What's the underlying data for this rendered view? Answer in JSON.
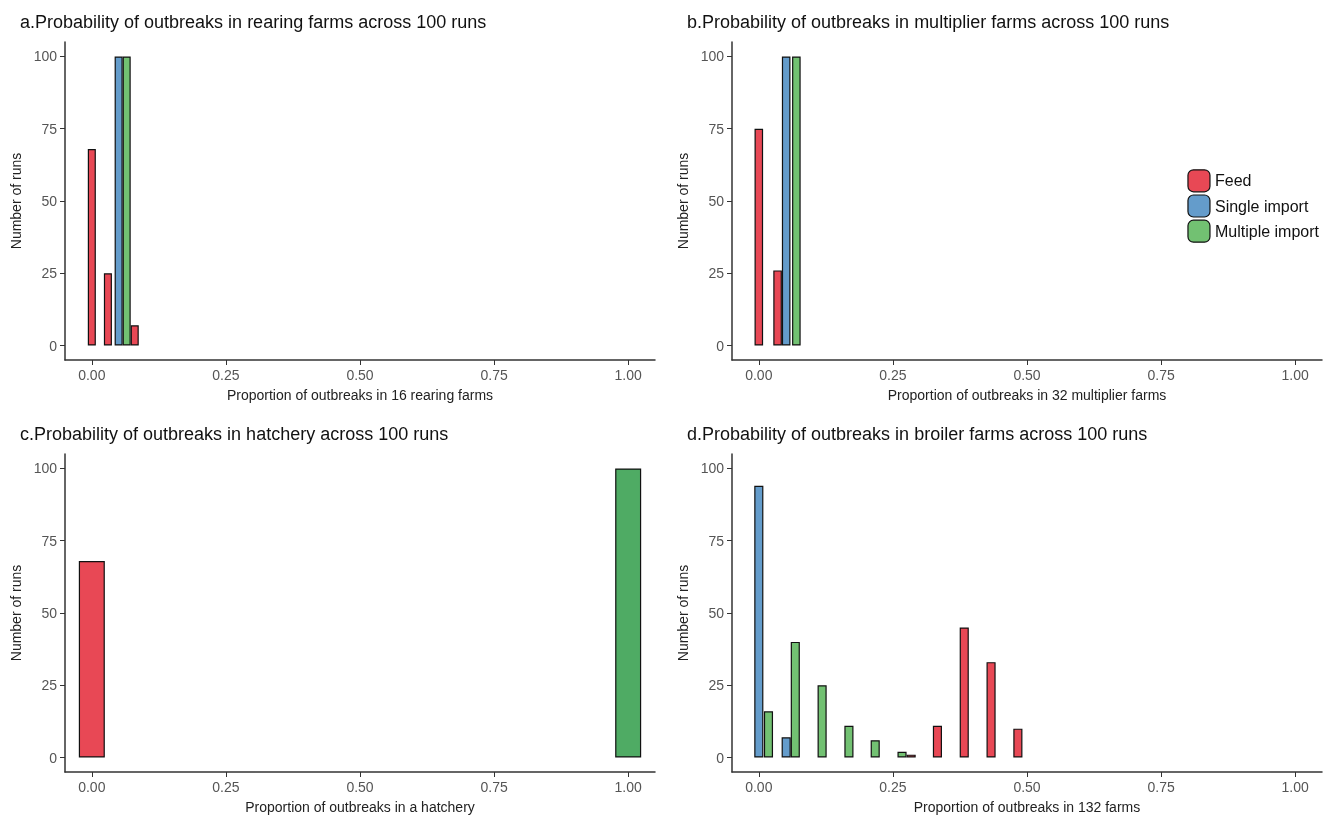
{
  "chart_data": [
    {
      "type": "bar",
      "title": "a.Probability of outbreaks in rearing farms across 100 runs",
      "xlabel": "Proportion of outbreaks in 16 rearing farms",
      "ylabel": "Number of runs",
      "xlim": [
        -0.05,
        1.05
      ],
      "ylim": [
        -5,
        105
      ],
      "xticks": [
        {
          "value": 0,
          "label": "0.00"
        },
        {
          "value": 0.25,
          "label": "0.25"
        },
        {
          "value": 0.5,
          "label": "0.50"
        },
        {
          "value": 0.75,
          "label": "0.75"
        },
        {
          "value": 1,
          "label": "1.00"
        }
      ],
      "yticks": [
        0,
        25,
        50,
        75,
        100
      ],
      "grid": false,
      "legend": false,
      "series": [
        {
          "color": "#e84855",
          "x": [
            0.0,
            0.03,
            0.08
          ],
          "values": [
            68,
            25,
            7
          ]
        },
        {
          "color": "#649ccb",
          "x": [
            0.05
          ],
          "values": [
            100
          ]
        },
        {
          "color": "#72c172",
          "x": [
            0.065
          ],
          "values": [
            100
          ]
        }
      ]
    },
    {
      "type": "bar",
      "title": "b.Probability of outbreaks in multiplier farms across 100 runs",
      "xlabel": "Proportion of outbreaks in 32 multiplier farms",
      "ylabel": "Number of runs",
      "xlim": [
        -0.05,
        1.05
      ],
      "ylim": [
        -5,
        105
      ],
      "xticks": [
        {
          "value": 0,
          "label": "0.00"
        },
        {
          "value": 0.25,
          "label": "0.25"
        },
        {
          "value": 0.5,
          "label": "0.50"
        },
        {
          "value": 0.75,
          "label": "0.75"
        },
        {
          "value": 1,
          "label": "1.00"
        }
      ],
      "yticks": [
        0,
        25,
        50,
        75,
        100
      ],
      "grid": false,
      "legend": "right",
      "series": [
        {
          "name": "Feed",
          "color": "#e84855",
          "x": [
            0.0,
            0.035
          ],
          "values": [
            75,
            26
          ]
        },
        {
          "name": "Single import",
          "color": "#649ccb",
          "x": [
            0.051
          ],
          "values": [
            100
          ]
        },
        {
          "name": "Multiple import",
          "color": "#72c172",
          "x": [
            0.07
          ],
          "values": [
            100
          ]
        }
      ]
    },
    {
      "type": "bar",
      "title": "c.Probability of outbreaks in hatchery across 100 runs",
      "xlabel": "Proportion of outbreaks in a hatchery",
      "ylabel": "Number of runs",
      "xlim": [
        -0.05,
        1.05
      ],
      "ylim": [
        -5,
        105
      ],
      "xticks": [
        {
          "value": 0,
          "label": "0.00"
        },
        {
          "value": 0.25,
          "label": "0.25"
        },
        {
          "value": 0.5,
          "label": "0.50"
        },
        {
          "value": 0.75,
          "label": "0.75"
        },
        {
          "value": 1,
          "label": "1.00"
        }
      ],
      "yticks": [
        0,
        25,
        50,
        75,
        100
      ],
      "grid": false,
      "legend": false,
      "series": [
        {
          "color": "#e84855",
          "x": [
            0.0
          ],
          "values": [
            68
          ]
        },
        {
          "color": "#4fab64",
          "x": [
            1.0
          ],
          "values": [
            100
          ]
        }
      ]
    },
    {
      "type": "bar",
      "title": "d.Probability of outbreaks in broiler farms across 100 runs",
      "xlabel": "Proportion of outbreaks in 132 farms",
      "ylabel": "Number of runs",
      "xlim": [
        -0.05,
        1.05
      ],
      "ylim": [
        -5,
        105
      ],
      "xticks": [
        {
          "value": 0,
          "label": "0.00"
        },
        {
          "value": 0.25,
          "label": "0.25"
        },
        {
          "value": 0.5,
          "label": "0.50"
        },
        {
          "value": 0.75,
          "label": "0.75"
        },
        {
          "value": 1,
          "label": "1.00"
        }
      ],
      "yticks": [
        0,
        25,
        50,
        75,
        100
      ],
      "grid": false,
      "legend": false,
      "series": [
        {
          "color": "#e84855",
          "x": [
            0.284,
            0.333,
            0.383,
            0.433,
            0.483
          ],
          "values": [
            1,
            11,
            45,
            33,
            10
          ]
        },
        {
          "color": "#649ccb",
          "x": [
            0.0,
            0.051
          ],
          "values": [
            94,
            7
          ]
        },
        {
          "color": "#72c172",
          "x": [
            0.018,
            0.068,
            0.118,
            0.168,
            0.217,
            0.267
          ],
          "values": [
            16,
            40,
            25,
            11,
            6,
            2
          ]
        }
      ]
    }
  ]
}
